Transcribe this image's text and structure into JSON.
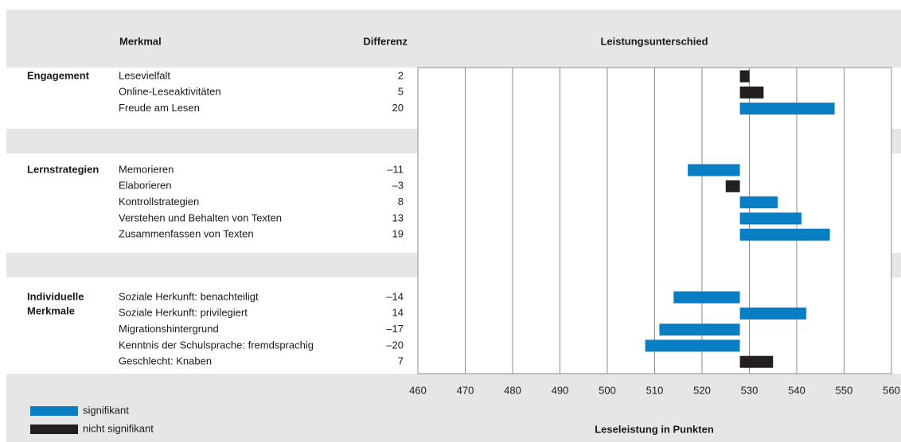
{
  "chart_data": {
    "type": "diverging-bar",
    "headers": {
      "feature": "Merkmal",
      "difference": "Differenz",
      "chart": "Leistungsunterschied"
    },
    "xlabel": "Leseleistung in Punkten",
    "xlim": [
      460,
      560
    ],
    "xticks": [
      460,
      470,
      480,
      490,
      500,
      510,
      520,
      530,
      540,
      550,
      560
    ],
    "baseline": 528,
    "grid": true,
    "legend": [
      {
        "name": "signifikant",
        "color": "#0a7ec2"
      },
      {
        "name": "nicht signifikant",
        "color": "#231f20"
      }
    ],
    "groups": [
      {
        "label": [
          "Engagement"
        ],
        "items": [
          {
            "name": "Lesevielfalt",
            "value": 2,
            "color": "#231f20"
          },
          {
            "name": "Online-Leseaktivitäten",
            "value": 5,
            "color": "#231f20"
          },
          {
            "name": "Freude am Lesen",
            "value": 20,
            "color": "#0a7ec2"
          }
        ]
      },
      {
        "label": [
          "Lernstrategien"
        ],
        "items": [
          {
            "name": "Memorieren",
            "value": -11,
            "value_label": "–11",
            "color": "#0a7ec2"
          },
          {
            "name": "Elaborieren",
            "value": -3,
            "value_label": "–3",
            "color": "#231f20"
          },
          {
            "name": "Kontrollstrategien",
            "value": 8,
            "color": "#0a7ec2"
          },
          {
            "name": "Verstehen und Behalten von Texten",
            "value": 13,
            "color": "#0a7ec2"
          },
          {
            "name": "Zusammenfassen von Texten",
            "value": 19,
            "color": "#0a7ec2"
          }
        ]
      },
      {
        "label": [
          "Individuelle",
          "Merkmale"
        ],
        "items": [
          {
            "name": "Soziale Herkunft: benachteiligt",
            "value": -14,
            "value_label": "–14",
            "color": "#0a7ec2"
          },
          {
            "name": "Soziale Herkunft: privilegiert",
            "value": 14,
            "color": "#0a7ec2"
          },
          {
            "name": "Migrationshintergrund",
            "value": -17,
            "value_label": "–17",
            "color": "#0a7ec2"
          },
          {
            "name": "Kenntnis der Schulsprache: fremdsprachig",
            "value": -20,
            "value_label": "–20",
            "color": "#0a7ec2"
          },
          {
            "name": "Geschlecht: Knaben",
            "value": 7,
            "color": "#231f20"
          }
        ]
      }
    ]
  }
}
